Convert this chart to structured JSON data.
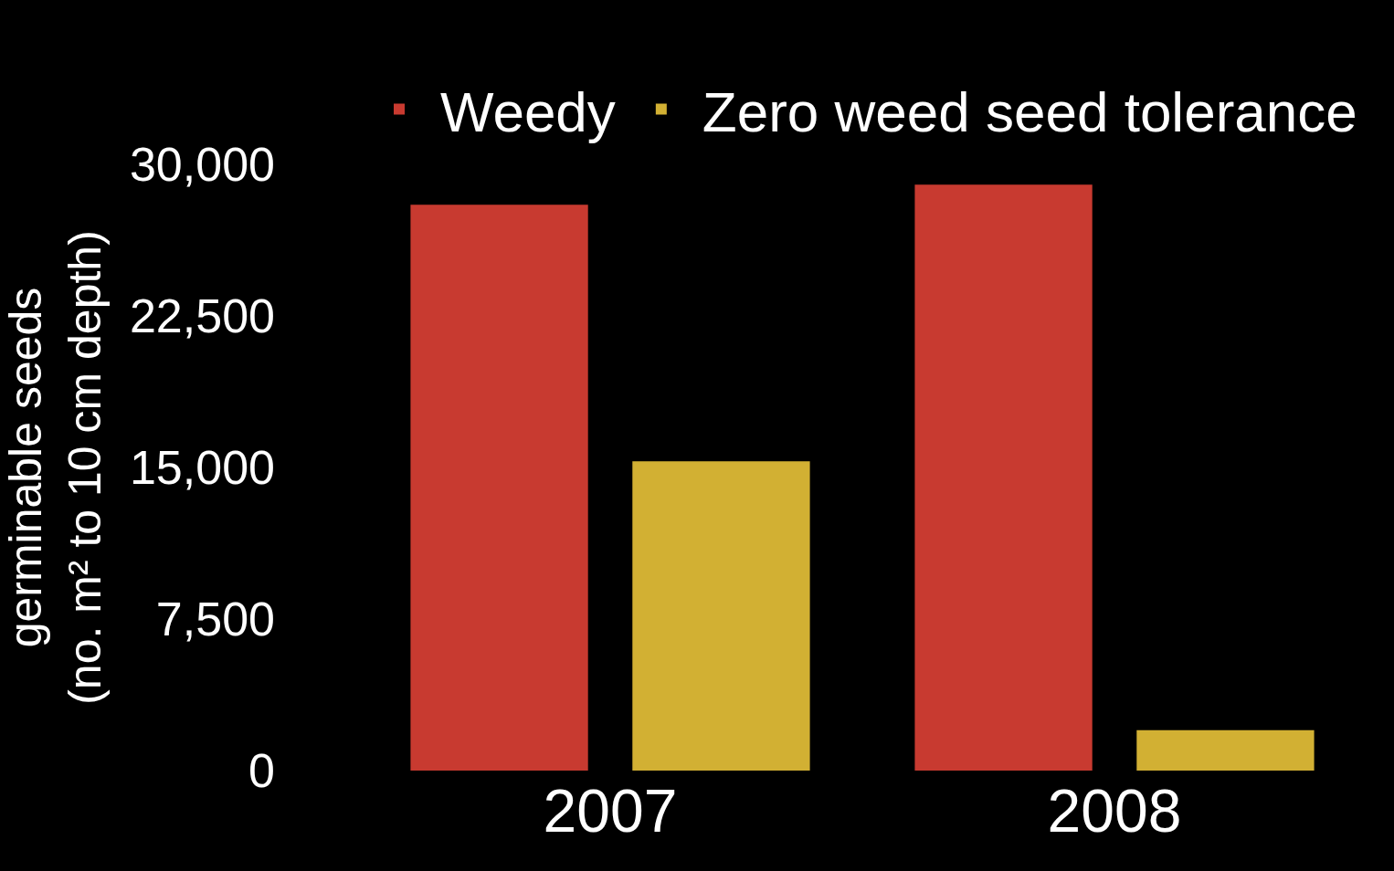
{
  "chart_data": {
    "type": "bar",
    "ylabel": "germinable seeds\n(no. m² to 10 cm depth)",
    "categories": [
      "2007",
      "2008"
    ],
    "series": [
      {
        "name": "Weedy",
        "color": "#c83a30",
        "values": [
          28000,
          29000
        ]
      },
      {
        "name": "Zero weed seed tolerance",
        "color": "#d2b033",
        "values": [
          15300,
          2000
        ]
      }
    ],
    "ylim": [
      0,
      30000
    ],
    "yticks": [
      0,
      {
        "value": 7500,
        "label": "7,500"
      },
      {
        "value": 15000,
        "label": "15,000"
      },
      {
        "value": 22500,
        "label": "22,500"
      },
      {
        "value": 30000,
        "label": "30,000"
      }
    ],
    "grid": false,
    "legend": "top"
  }
}
